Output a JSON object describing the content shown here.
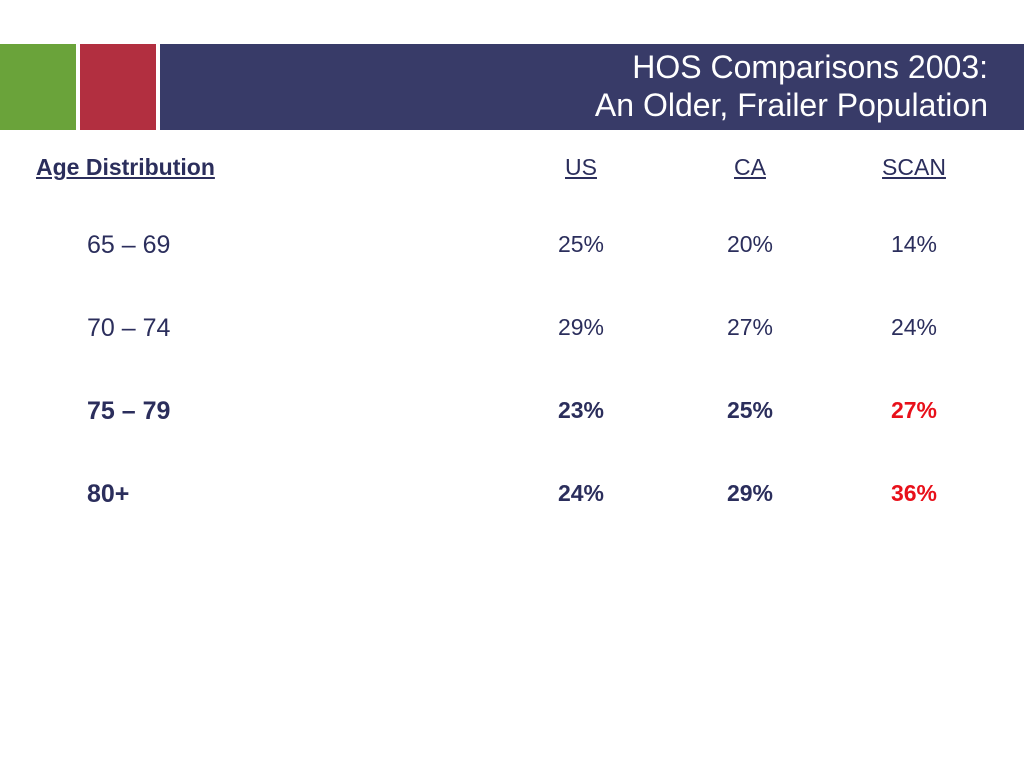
{
  "slide": {
    "title_line1": "HOS Comparisons 2003:",
    "title_line2": "An Older, Frailer Population"
  },
  "table": {
    "row_header": "Age Distribution",
    "columns": [
      "US",
      "CA",
      "SCAN"
    ],
    "rows": [
      {
        "label": "65 – 69",
        "values": [
          "25%",
          "20%",
          "14%"
        ]
      },
      {
        "label": "70 – 74",
        "values": [
          "29%",
          "27%",
          "24%"
        ]
      },
      {
        "label": "75 – 79",
        "values": [
          "23%",
          "25%",
          "27%"
        ]
      },
      {
        "label": "80+",
        "values": [
          "24%",
          "29%",
          "36%"
        ]
      }
    ]
  },
  "colors": {
    "navy": "#383b68",
    "green": "#6aa33a",
    "crimson": "#b22f40",
    "highlight_red": "#e8101a"
  }
}
